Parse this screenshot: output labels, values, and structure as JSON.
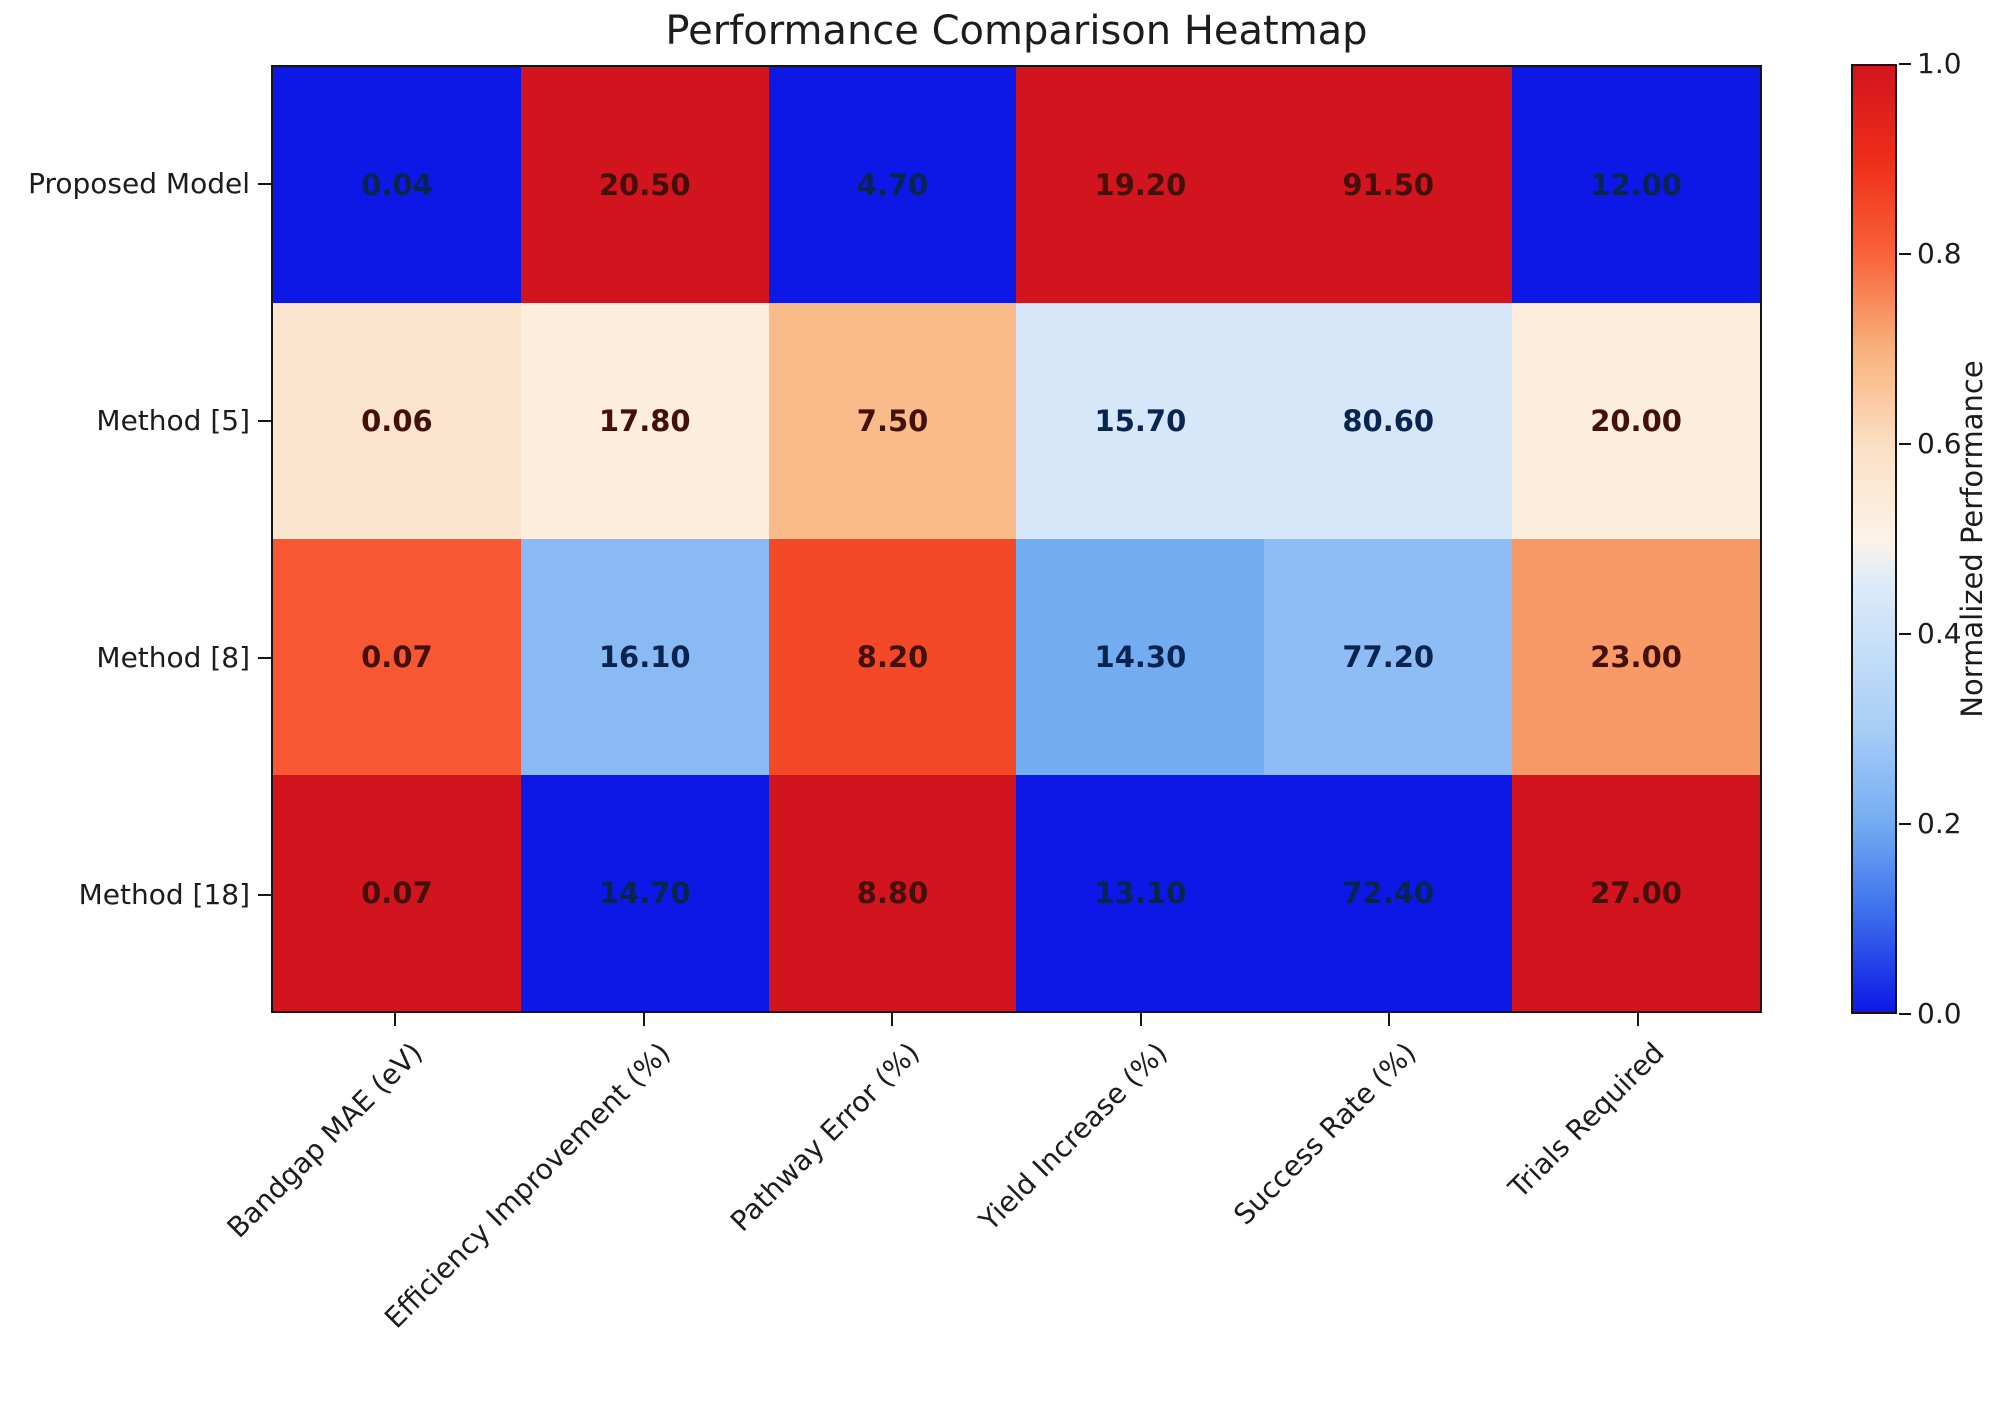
{
  "figure": {
    "background": "#ffffff"
  },
  "chart_data": {
    "type": "heatmap",
    "title": "Performance Comparison Heatmap",
    "rows": [
      "Proposed Model",
      "Method [5]",
      "Method [8]",
      "Method [18]"
    ],
    "columns": [
      "Bandgap MAE (eV)",
      "Efficiency Improvement (%)",
      "Pathway Error (%)",
      "Yield Increase (%)",
      "Success Rate (%)",
      "Trials Required"
    ],
    "values": [
      [
        0.04,
        20.5,
        4.7,
        19.2,
        91.5,
        12.0
      ],
      [
        0.06,
        17.8,
        7.5,
        15.7,
        80.6,
        20.0
      ],
      [
        0.07,
        16.1,
        8.2,
        14.3,
        77.2,
        23.0
      ],
      [
        0.07,
        14.7,
        8.8,
        13.1,
        72.4,
        27.0
      ]
    ],
    "cell_labels": [
      [
        "0.04",
        "20.50",
        "4.70",
        "19.20",
        "91.50",
        "12.00"
      ],
      [
        "0.06",
        "17.80",
        "7.50",
        "15.70",
        "80.60",
        "20.00"
      ],
      [
        "0.07",
        "16.10",
        "8.20",
        "14.30",
        "77.20",
        "23.00"
      ],
      [
        "0.07",
        "14.70",
        "8.80",
        "13.10",
        "72.40",
        "27.00"
      ]
    ],
    "normalized": [
      [
        0.0,
        1.0,
        0.0,
        1.0,
        1.0,
        0.0
      ],
      [
        0.57,
        0.53,
        0.68,
        0.43,
        0.43,
        0.53
      ],
      [
        0.82,
        0.24,
        0.85,
        0.2,
        0.25,
        0.73
      ],
      [
        1.0,
        0.0,
        1.0,
        0.0,
        0.0,
        1.0
      ]
    ],
    "colorbar": {
      "label": "Normalized Performance",
      "tick_labels": [
        "1.0",
        "0.8",
        "0.6",
        "0.4",
        "0.2",
        "0.0"
      ],
      "range": [
        0,
        1
      ],
      "position": "right"
    },
    "colors": {
      "colormap_stops": [
        [
          0.0,
          "#0d18e6"
        ],
        [
          0.1,
          "#3a6bed"
        ],
        [
          0.2,
          "#74acf2"
        ],
        [
          0.3,
          "#a8cef7"
        ],
        [
          0.45,
          "#dcebf9"
        ],
        [
          0.5,
          "#fdf3e8"
        ],
        [
          0.6,
          "#fbdfc3"
        ],
        [
          0.7,
          "#f8b27c"
        ],
        [
          0.8,
          "#f9633a"
        ],
        [
          0.9,
          "#ee2e18"
        ],
        [
          1.0,
          "#d2141f"
        ]
      ],
      "annot_warm": "#44100a",
      "annot_cool": "#0a2450",
      "axis": "#151515",
      "text": "#1c1c1c"
    },
    "layout_hints": {
      "grid": false,
      "annotations": true,
      "x_label_rotation": -45,
      "legend": "colorbar-right"
    }
  }
}
